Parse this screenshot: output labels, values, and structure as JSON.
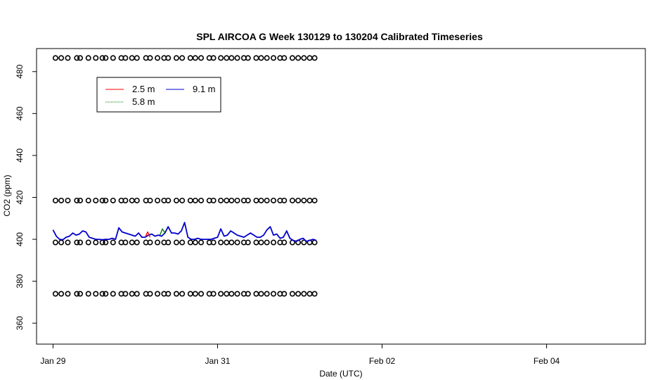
{
  "chart_data": {
    "type": "line",
    "title": "SPL AIRCOA G  Week 130129 to 130204  Calibrated Timeseries",
    "xlabel": "Date (UTC)",
    "ylabel": "CO2 (ppm)",
    "x_unit": "days from Jan 29 00:00 UTC",
    "xlim": [
      -0.2,
      7.2
    ],
    "ylim": [
      350,
      491
    ],
    "x_ticks": [
      {
        "value": 0,
        "label": "Jan 29"
      },
      {
        "value": 2,
        "label": "Jan 31"
      },
      {
        "value": 4,
        "label": "Feb 02"
      },
      {
        "value": 6,
        "label": "Feb 04"
      }
    ],
    "y_ticks": [
      {
        "value": 360,
        "label": "360"
      },
      {
        "value": 380,
        "label": "380"
      },
      {
        "value": 400,
        "label": "400"
      },
      {
        "value": 420,
        "label": "420"
      },
      {
        "value": 440,
        "label": "440"
      },
      {
        "value": 460,
        "label": "460"
      },
      {
        "value": 480,
        "label": "480"
      }
    ],
    "legend": {
      "position": "top-left",
      "entries": [
        {
          "name": "2.5 m",
          "color": "#ff0000"
        },
        {
          "name": "9.1 m",
          "color": "#0000cc"
        },
        {
          "name": "5.8 m",
          "color": "#008000"
        }
      ]
    },
    "series": [
      {
        "name": "9.1 m",
        "color": "#0000cc",
        "x": [
          0.0,
          0.04,
          0.08,
          0.12,
          0.16,
          0.2,
          0.24,
          0.28,
          0.32,
          0.36,
          0.4,
          0.44,
          0.48,
          0.52,
          0.56,
          0.6,
          0.64,
          0.68,
          0.72,
          0.76,
          0.8,
          0.84,
          0.88,
          0.92,
          0.96,
          1.0,
          1.04,
          1.08,
          1.12,
          1.16,
          1.2,
          1.24,
          1.28,
          1.32,
          1.36,
          1.4,
          1.44,
          1.48,
          1.52,
          1.56,
          1.6,
          1.64,
          1.68,
          1.72,
          1.76,
          1.8,
          1.84,
          1.88,
          1.92,
          1.96,
          2.0,
          2.04,
          2.08,
          2.12,
          2.16,
          2.2,
          2.24,
          2.28,
          2.32,
          2.36,
          2.4,
          2.44,
          2.48,
          2.52,
          2.56,
          2.6,
          2.64,
          2.68,
          2.72,
          2.76,
          2.8,
          2.84,
          2.88,
          2.92,
          2.96,
          3.0,
          3.04,
          3.08,
          3.12,
          3.16,
          3.2
        ],
        "y": [
          404.5,
          401.5,
          400.0,
          399.8,
          401.0,
          401.5,
          403.0,
          402.0,
          402.5,
          404.0,
          403.5,
          401.0,
          400.5,
          400.0,
          400.0,
          399.8,
          400.0,
          400.0,
          400.5,
          400.0,
          405.5,
          403.5,
          403.0,
          402.5,
          402.0,
          401.5,
          403.0,
          401.0,
          401.0,
          402.0,
          402.5,
          401.5,
          402.0,
          401.5,
          403.0,
          406.0,
          403.0,
          403.0,
          402.5,
          404.0,
          408.0,
          401.0,
          400.0,
          400.0,
          400.5,
          400.0,
          400.0,
          400.0,
          400.0,
          400.5,
          401.0,
          405.0,
          401.5,
          402.0,
          404.0,
          403.0,
          402.0,
          401.5,
          401.0,
          402.0,
          403.0,
          402.0,
          401.0,
          401.0,
          402.0,
          404.5,
          406.0,
          402.0,
          402.5,
          400.5,
          401.0,
          404.0,
          400.5,
          399.5,
          399.0,
          400.0,
          400.5,
          399.0,
          399.5,
          400.0,
          399.5
        ]
      },
      {
        "name": "2.5 m",
        "color": "#ff0000",
        "x": [
          1.12,
          1.15,
          1.18
        ],
        "y": [
          401.0,
          403.5,
          401.0
        ]
      },
      {
        "name": "5.8 m",
        "color": "#008000",
        "x": [
          1.3,
          1.33,
          1.36
        ],
        "y": [
          402.0,
          405.0,
          403.0
        ]
      }
    ],
    "marker_rows": [
      {
        "y": 486.5
      },
      {
        "y": 418.5
      },
      {
        "y": 398.5
      },
      {
        "y": 374.0
      }
    ],
    "marker_x": [
      0.03,
      0.1,
      0.18,
      0.29,
      0.33,
      0.43,
      0.52,
      0.6,
      0.64,
      0.73,
      0.83,
      0.88,
      0.96,
      1.02,
      1.13,
      1.18,
      1.27,
      1.35,
      1.4,
      1.5,
      1.57,
      1.67,
      1.73,
      1.8,
      1.9,
      1.95,
      2.04,
      2.11,
      2.17,
      2.24,
      2.32,
      2.37,
      2.47,
      2.53,
      2.6,
      2.68,
      2.76,
      2.81,
      2.91,
      2.98,
      3.05,
      3.12,
      3.18
    ]
  }
}
